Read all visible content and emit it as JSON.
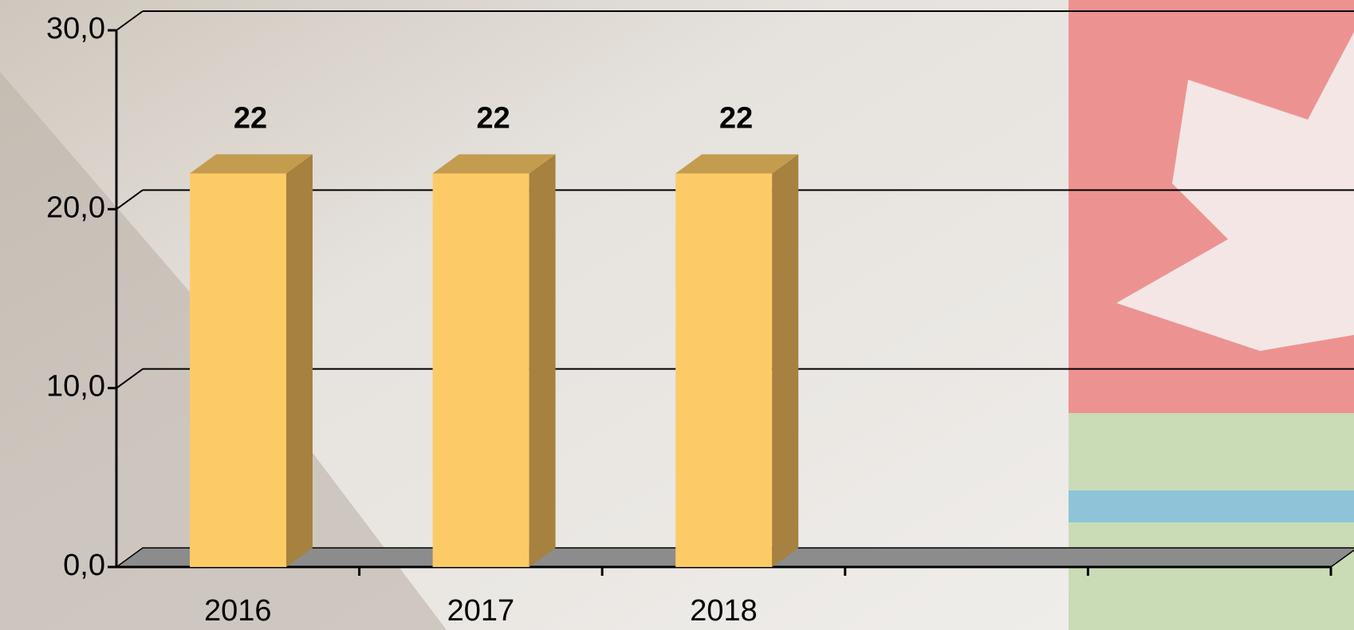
{
  "chart_data": {
    "type": "bar3d",
    "categories": [
      "2016",
      "2017",
      "2018",
      null,
      null
    ],
    "values": [
      22,
      22,
      22,
      null,
      null
    ],
    "color": "#fdcb66",
    "ylim": [
      0,
      30
    ],
    "yticks": [
      {
        "value": 0,
        "label": "0,0"
      },
      {
        "value": 10,
        "label": "10,0"
      },
      {
        "value": 20,
        "label": "20,0"
      },
      {
        "value": 30,
        "label": "30,0"
      }
    ],
    "grid": true
  }
}
